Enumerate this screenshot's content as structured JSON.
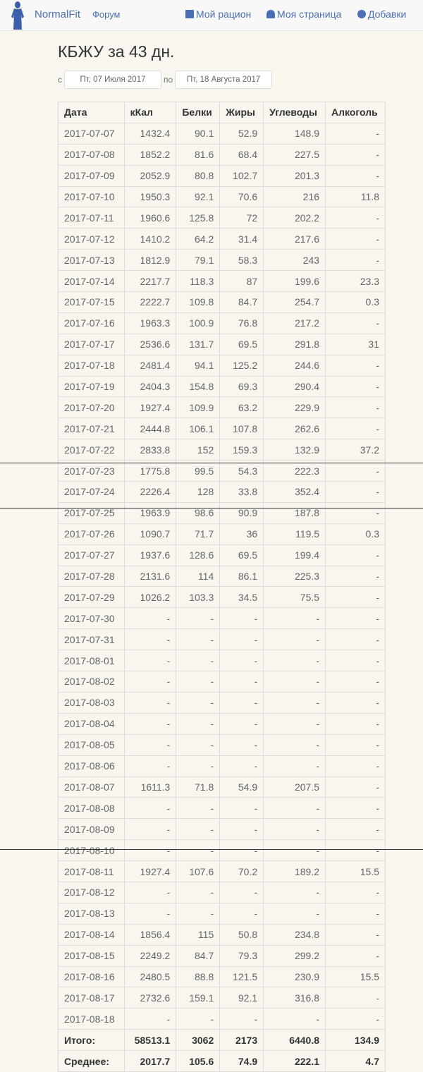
{
  "nav": {
    "brand": "NormalFit",
    "forum": "Форум",
    "my_diet": "Мой рацион",
    "my_page": "Моя страница",
    "supplements": "Добавки",
    "accent": "#4a6fb5"
  },
  "page": {
    "title": "КБЖУ за 43 дн.",
    "from_label": "с",
    "from_date": "Пт, 07  Июля 2017",
    "to_label": "по",
    "to_date": "Пт, 18  Августа 2017"
  },
  "table": {
    "headers": [
      "Дата",
      "кКал",
      "Белки",
      "Жиры",
      "Углеводы",
      "Алкоголь"
    ],
    "rows": [
      [
        "2017-07-07",
        "1432.4",
        "90.1",
        "52.9",
        "148.9",
        "-"
      ],
      [
        "2017-07-08",
        "1852.2",
        "81.6",
        "68.4",
        "227.5",
        "-"
      ],
      [
        "2017-07-09",
        "2052.9",
        "80.8",
        "102.7",
        "201.3",
        "-"
      ],
      [
        "2017-07-10",
        "1950.3",
        "92.1",
        "70.6",
        "216",
        "11.8"
      ],
      [
        "2017-07-11",
        "1960.6",
        "125.8",
        "72",
        "202.2",
        "-"
      ],
      [
        "2017-07-12",
        "1410.2",
        "64.2",
        "31.4",
        "217.6",
        "-"
      ],
      [
        "2017-07-13",
        "1812.9",
        "79.1",
        "58.3",
        "243",
        "-"
      ],
      [
        "2017-07-14",
        "2217.7",
        "118.3",
        "87",
        "199.6",
        "23.3"
      ],
      [
        "2017-07-15",
        "2222.7",
        "109.8",
        "84.7",
        "254.7",
        "0.3"
      ],
      [
        "2017-07-16",
        "1963.3",
        "100.9",
        "76.8",
        "217.2",
        "-"
      ],
      [
        "2017-07-17",
        "2536.6",
        "131.7",
        "69.5",
        "291.8",
        "31"
      ],
      [
        "2017-07-18",
        "2481.4",
        "94.1",
        "125.2",
        "244.6",
        "-"
      ],
      [
        "2017-07-19",
        "2404.3",
        "154.8",
        "69.3",
        "290.4",
        "-"
      ],
      [
        "2017-07-20",
        "1927.4",
        "109.9",
        "63.2",
        "229.9",
        "-"
      ],
      [
        "2017-07-21",
        "2444.8",
        "106.1",
        "107.8",
        "262.6",
        "-"
      ],
      [
        "2017-07-22",
        "2833.8",
        "152",
        "159.3",
        "132.9",
        "37.2"
      ],
      [
        "2017-07-23",
        "1775.8",
        "99.5",
        "54.3",
        "222.3",
        "-"
      ],
      [
        "2017-07-24",
        "2226.4",
        "128",
        "33.8",
        "352.4",
        "-"
      ],
      [
        "2017-07-25",
        "1963.9",
        "98.6",
        "90.9",
        "187.8",
        "-"
      ],
      [
        "2017-07-26",
        "1090.7",
        "71.7",
        "36",
        "119.5",
        "0.3"
      ],
      [
        "2017-07-27",
        "1937.6",
        "128.6",
        "69.5",
        "199.4",
        "-"
      ],
      [
        "2017-07-28",
        "2131.6",
        "114",
        "86.1",
        "225.3",
        "-"
      ],
      [
        "2017-07-29",
        "1026.2",
        "103.3",
        "34.5",
        "75.5",
        "-"
      ],
      [
        "2017-07-30",
        "-",
        "-",
        "-",
        "-",
        "-"
      ],
      [
        "2017-07-31",
        "-",
        "-",
        "-",
        "-",
        "-"
      ],
      [
        "2017-08-01",
        "-",
        "-",
        "-",
        "-",
        "-"
      ],
      [
        "2017-08-02",
        "-",
        "-",
        "-",
        "-",
        "-"
      ],
      [
        "2017-08-03",
        "-",
        "-",
        "-",
        "-",
        "-"
      ],
      [
        "2017-08-04",
        "-",
        "-",
        "-",
        "-",
        "-"
      ],
      [
        "2017-08-05",
        "-",
        "-",
        "-",
        "-",
        "-"
      ],
      [
        "2017-08-06",
        "-",
        "-",
        "-",
        "-",
        "-"
      ],
      [
        "2017-08-07",
        "1611.3",
        "71.8",
        "54.9",
        "207.5",
        "-"
      ],
      [
        "2017-08-08",
        "-",
        "-",
        "-",
        "-",
        "-"
      ],
      [
        "2017-08-09",
        "-",
        "-",
        "-",
        "-",
        "-"
      ],
      [
        "2017-08-10",
        "-",
        "-",
        "-",
        "-",
        "-"
      ],
      [
        "2017-08-11",
        "1927.4",
        "107.6",
        "70.2",
        "189.2",
        "15.5"
      ],
      [
        "2017-08-12",
        "-",
        "-",
        "-",
        "-",
        "-"
      ],
      [
        "2017-08-13",
        "-",
        "-",
        "-",
        "-",
        "-"
      ],
      [
        "2017-08-14",
        "1856.4",
        "115",
        "50.8",
        "234.8",
        "-"
      ],
      [
        "2017-08-15",
        "2249.2",
        "84.7",
        "79.3",
        "299.2",
        "-"
      ],
      [
        "2017-08-16",
        "2480.5",
        "88.8",
        "121.5",
        "230.9",
        "15.5"
      ],
      [
        "2017-08-17",
        "2732.6",
        "159.1",
        "92.1",
        "316.8",
        "-"
      ],
      [
        "2017-08-18",
        "-",
        "-",
        "-",
        "-",
        "-"
      ]
    ],
    "totals": [
      [
        "Итого:",
        "58513.1",
        "3062",
        "2173",
        "6440.8",
        "134.9"
      ],
      [
        "Среднее:",
        "2017.7",
        "105.6",
        "74.9",
        "222.1",
        "4.7"
      ]
    ]
  }
}
